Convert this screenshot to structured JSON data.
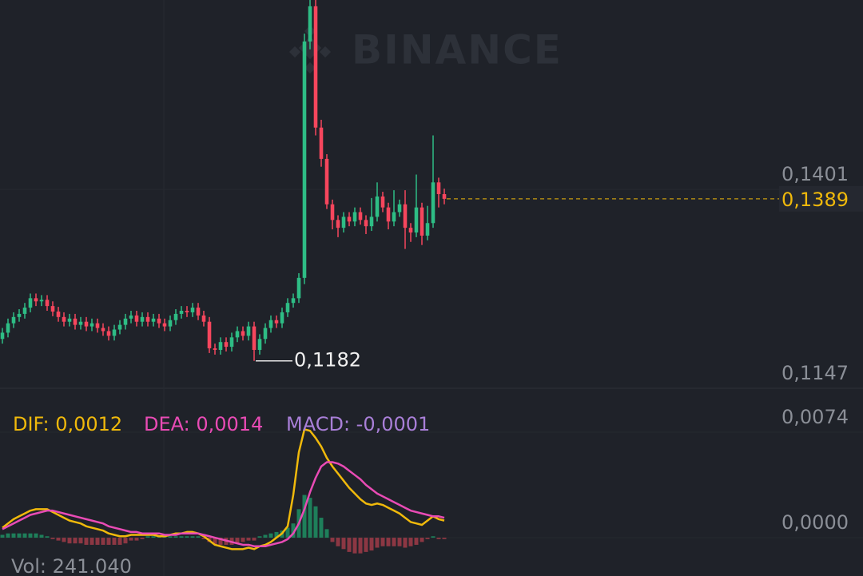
{
  "watermark": "BINANCE",
  "volume_label": "Vol: 241.040",
  "chart_data": [
    {
      "type": "candlestick",
      "up_color": "#2ebd85",
      "down_color": "#f6465d",
      "ylim": [
        0.1147,
        0.1643
      ],
      "yticks": [
        {
          "value": 0.1401,
          "label": "0,1401"
        },
        {
          "value": 0.1147,
          "label": "0,1147"
        }
      ],
      "annotations": [
        {
          "value": 0.1182,
          "label": "0,1182"
        }
      ],
      "last_price": {
        "value": 0.1389,
        "label": "0,1389",
        "color": "#f0b90b"
      },
      "open": [
        0.121,
        0.1218,
        0.123,
        0.1238,
        0.1242,
        0.125,
        0.1262,
        0.1258,
        0.126,
        0.1252,
        0.1245,
        0.1238,
        0.1232,
        0.1236,
        0.1228,
        0.1232,
        0.1226,
        0.123,
        0.1224,
        0.122,
        0.1214,
        0.1222,
        0.1228,
        0.1236,
        0.124,
        0.1232,
        0.1238,
        0.1232,
        0.1236,
        0.123,
        0.1226,
        0.1234,
        0.1242,
        0.1246,
        0.1244,
        0.125,
        0.124,
        0.1232,
        0.1198,
        0.1196,
        0.1206,
        0.12,
        0.1212,
        0.122,
        0.1214,
        0.1226,
        0.1196,
        0.121,
        0.1224,
        0.1234,
        0.123,
        0.1244,
        0.1256,
        0.1262,
        0.1288,
        0.159,
        0.1635,
        0.148,
        0.144,
        0.1382,
        0.1362,
        0.1352,
        0.1366,
        0.136,
        0.1372,
        0.1362,
        0.1354,
        0.1366,
        0.1392,
        0.1378,
        0.136,
        0.1372,
        0.1382,
        0.1352,
        0.1346,
        0.1378,
        0.1342,
        0.1358,
        0.141,
        0.1395
      ],
      "high": [
        0.1224,
        0.1236,
        0.1244,
        0.1248,
        0.1256,
        0.1268,
        0.1268,
        0.1266,
        0.1266,
        0.1258,
        0.1251,
        0.1244,
        0.1242,
        0.1242,
        0.1238,
        0.1238,
        0.1236,
        0.1236,
        0.123,
        0.1226,
        0.1228,
        0.1234,
        0.1242,
        0.1246,
        0.1246,
        0.1244,
        0.1244,
        0.1242,
        0.1242,
        0.1236,
        0.124,
        0.1248,
        0.1252,
        0.1252,
        0.1256,
        0.1256,
        0.1246,
        0.1238,
        0.1204,
        0.1212,
        0.1212,
        0.1218,
        0.1226,
        0.1226,
        0.1232,
        0.1232,
        0.1216,
        0.123,
        0.124,
        0.124,
        0.125,
        0.1262,
        0.1268,
        0.1294,
        0.16,
        0.1645,
        0.165,
        0.149,
        0.1446,
        0.1388,
        0.1368,
        0.1372,
        0.1372,
        0.1378,
        0.1378,
        0.1368,
        0.139,
        0.141,
        0.1398,
        0.1384,
        0.14,
        0.1388,
        0.14,
        0.1358,
        0.142,
        0.1384,
        0.138,
        0.147,
        0.1416,
        0.1402
      ],
      "low": [
        0.1204,
        0.1212,
        0.1224,
        0.1232,
        0.1236,
        0.1244,
        0.1252,
        0.1252,
        0.1246,
        0.1239,
        0.1232,
        0.1226,
        0.1226,
        0.1222,
        0.1222,
        0.122,
        0.122,
        0.1218,
        0.1214,
        0.1208,
        0.1208,
        0.1216,
        0.1222,
        0.123,
        0.1226,
        0.1226,
        0.1226,
        0.1226,
        0.1224,
        0.122,
        0.122,
        0.1228,
        0.1236,
        0.1238,
        0.1238,
        0.1234,
        0.1226,
        0.1192,
        0.119,
        0.119,
        0.1194,
        0.1194,
        0.1206,
        0.1208,
        0.1208,
        0.1182,
        0.119,
        0.1204,
        0.1218,
        0.1224,
        0.1224,
        0.1238,
        0.125,
        0.1256,
        0.128,
        0.158,
        0.147,
        0.143,
        0.1376,
        0.135,
        0.134,
        0.1346,
        0.1354,
        0.1354,
        0.1356,
        0.1344,
        0.1348,
        0.136,
        0.1372,
        0.135,
        0.1354,
        0.1366,
        0.1325,
        0.1334,
        0.134,
        0.133,
        0.1336,
        0.1352,
        0.1378,
        0.1382
      ],
      "close": [
        0.1218,
        0.123,
        0.1238,
        0.1242,
        0.125,
        0.1262,
        0.1258,
        0.126,
        0.1252,
        0.1245,
        0.1238,
        0.1232,
        0.1236,
        0.1228,
        0.1232,
        0.1226,
        0.123,
        0.1224,
        0.122,
        0.1214,
        0.1222,
        0.1228,
        0.1236,
        0.124,
        0.1232,
        0.1238,
        0.1232,
        0.1236,
        0.123,
        0.1226,
        0.1234,
        0.1242,
        0.1246,
        0.1244,
        0.125,
        0.124,
        0.1232,
        0.1198,
        0.1196,
        0.1206,
        0.12,
        0.1212,
        0.122,
        0.1214,
        0.1226,
        0.1196,
        0.121,
        0.1224,
        0.1234,
        0.123,
        0.1244,
        0.1256,
        0.1262,
        0.1288,
        0.159,
        0.1635,
        0.148,
        0.144,
        0.1382,
        0.1362,
        0.1352,
        0.1366,
        0.136,
        0.1372,
        0.1362,
        0.1354,
        0.1366,
        0.1392,
        0.1378,
        0.136,
        0.1372,
        0.1382,
        0.1352,
        0.1346,
        0.1378,
        0.1342,
        0.1358,
        0.141,
        0.1395,
        0.1389
      ]
    },
    {
      "type": "macd",
      "ylim": [
        -0.00095,
        0.01043
      ],
      "yticks": [
        {
          "value": 0.0074,
          "label": "0,0074"
        },
        {
          "value": 0,
          "label": "0,0000"
        }
      ],
      "series": [
        {
          "name": "DIF: 0,0012",
          "color": "#f0b90b",
          "values": [
            0.0007,
            0.001,
            0.0013,
            0.0015,
            0.0017,
            0.0019,
            0.002,
            0.002,
            0.002,
            0.0018,
            0.0016,
            0.0014,
            0.0012,
            0.0011,
            0.001,
            0.0008,
            0.0007,
            0.0006,
            0.0005,
            0.0003,
            0.0002,
            0.0001,
            0.0001,
            0.0002,
            0.0002,
            0.0002,
            0.0002,
            0.0002,
            0.0001,
            0.0001,
            0.0002,
            0.0003,
            0.0003,
            0.0004,
            0.0004,
            0.0003,
            0.0001,
            -0.0002,
            -0.0005,
            -0.0006,
            -0.0007,
            -0.0008,
            -0.0008,
            -0.0008,
            -0.0007,
            -0.0008,
            -0.0006,
            -0.0005,
            -0.0003,
            0.0,
            0.0003,
            0.0008,
            0.003,
            0.006,
            0.0076,
            0.0075,
            0.007,
            0.0064,
            0.0056,
            0.005,
            0.0045,
            0.004,
            0.0035,
            0.0031,
            0.0027,
            0.0024,
            0.0023,
            0.0024,
            0.0023,
            0.0021,
            0.0019,
            0.0017,
            0.0014,
            0.0011,
            0.001,
            0.0009,
            0.0012,
            0.0015,
            0.0013,
            0.0012
          ]
        },
        {
          "name": "DEA: 0,0014",
          "color": "#e94bb5",
          "values": [
            0.0006,
            0.0008,
            0.001,
            0.0012,
            0.0014,
            0.0016,
            0.0017,
            0.0018,
            0.0019,
            0.0019,
            0.0018,
            0.0017,
            0.0016,
            0.0015,
            0.0014,
            0.0013,
            0.0012,
            0.0011,
            0.001,
            0.0008,
            0.0007,
            0.0006,
            0.0005,
            0.0004,
            0.0004,
            0.0003,
            0.0003,
            0.0003,
            0.0003,
            0.0002,
            0.0002,
            0.0002,
            0.0003,
            0.0003,
            0.0003,
            0.0003,
            0.0002,
            0.0001,
            0.0,
            -0.0001,
            -0.0002,
            -0.0003,
            -0.0004,
            -0.0005,
            -0.0005,
            -0.0006,
            -0.0006,
            -0.0006,
            -0.0005,
            -0.0004,
            -0.0003,
            -0.0001,
            0.0003,
            0.001,
            0.002,
            0.0032,
            0.0042,
            0.005,
            0.0053,
            0.0053,
            0.0052,
            0.005,
            0.0047,
            0.0044,
            0.0041,
            0.0037,
            0.0034,
            0.0031,
            0.0029,
            0.0027,
            0.0025,
            0.0023,
            0.0021,
            0.0019,
            0.0018,
            0.0017,
            0.0016,
            0.0015,
            0.0015,
            0.0014
          ]
        }
      ],
      "histogram": {
        "name": "MACD: -0,0001",
        "label_color": "#a97fd8",
        "up_color": "#1e7f5a",
        "down_color": "#8c3743",
        "values": [
          0.0002,
          0.0003,
          0.0003,
          0.0003,
          0.0003,
          0.0003,
          0.0003,
          0.0002,
          0.0001,
          -0.0001,
          -0.0002,
          -0.0003,
          -0.0004,
          -0.0004,
          -0.0004,
          -0.0005,
          -0.0005,
          -0.0005,
          -0.0005,
          -0.0005,
          -0.0005,
          -0.0005,
          -0.0004,
          -0.0002,
          -0.0002,
          -0.0001,
          0.0001,
          0.0001,
          0.0001,
          0.0001,
          0.0001,
          0.0001,
          0.0001,
          0.0001,
          0.0001,
          0.0001,
          -0.0001,
          -0.0003,
          -0.0005,
          -0.0005,
          -0.0005,
          -0.0005,
          -0.0004,
          -0.0003,
          -0.0002,
          -0.0002,
          0.0001,
          0.0002,
          0.0003,
          0.0004,
          0.0005,
          0.0007,
          0.001,
          0.002,
          0.003,
          0.0028,
          0.0022,
          0.0014,
          0.0006,
          -0.0003,
          -0.0006,
          -0.0008,
          -0.001,
          -0.0011,
          -0.0011,
          -0.001,
          -0.0009,
          -0.0007,
          -0.0006,
          -0.0006,
          -0.0006,
          -0.0006,
          -0.0007,
          -0.0006,
          -0.0005,
          -0.0003,
          -0.0001,
          0.0001,
          -0.0001,
          -0.0001
        ]
      }
    }
  ]
}
